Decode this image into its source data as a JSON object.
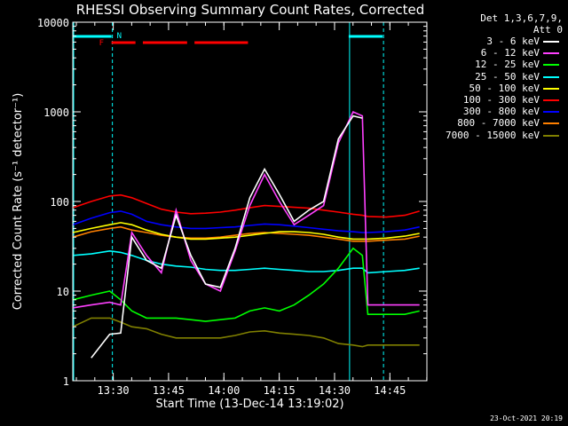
{
  "chart_data": {
    "type": "line",
    "title": "RHESSI Observing Summary Count Rates, Corrected",
    "xlabel": "Start Time (13-Dec-14 13:19:02)",
    "ylabel": "Corrected Count Rate (s⁻¹ detector⁻¹)",
    "yscale": "log",
    "ylim": [
      1,
      10000
    ],
    "xlim_minutes_after_start": [
      0,
      96
    ],
    "x_unit": "minutes after 13:19:02",
    "xticks": [
      {
        "label": "13:30",
        "value": 10.97
      },
      {
        "label": "13:45",
        "value": 25.97
      },
      {
        "label": "14:00",
        "value": 40.97
      },
      {
        "label": "14:15",
        "value": 55.97
      },
      {
        "label": "14:30",
        "value": 70.97
      },
      {
        "label": "14:45",
        "value": 85.97
      }
    ],
    "yticks": [
      {
        "label": "1",
        "value": 1
      },
      {
        "label": "10",
        "value": 10
      },
      {
        "label": "100",
        "value": 100
      },
      {
        "label": "1000",
        "value": 1000
      },
      {
        "label": "10000",
        "value": 10000
      }
    ],
    "legend_header": [
      "Det 1,3,6,7,9,",
      "Att 0"
    ],
    "legend_position": "right",
    "x": [
      0,
      5,
      10,
      13,
      16,
      20,
      24,
      28,
      32,
      36,
      40,
      44,
      48,
      52,
      56,
      60,
      64,
      68,
      72,
      76,
      78.5,
      80,
      85,
      90,
      94
    ],
    "series": [
      {
        "name": "3 - 6 keV",
        "color": "#ffffff",
        "values": [
          null,
          1.8,
          3.3,
          3.4,
          40,
          22,
          18,
          70,
          25,
          12,
          11,
          30,
          110,
          230,
          120,
          60,
          80,
          100,
          500,
          900,
          850,
          null,
          null,
          null,
          null
        ]
      },
      {
        "name": "6 - 12 keV",
        "color": "#ff40ff",
        "values": [
          6.5,
          7,
          7.5,
          7,
          45,
          25,
          16,
          80,
          22,
          12,
          10,
          28,
          90,
          200,
          100,
          55,
          70,
          90,
          450,
          1000,
          900,
          7,
          7,
          7,
          7
        ]
      },
      {
        "name": "12 - 25 keV",
        "color": "#00ff00",
        "values": [
          8,
          9,
          10,
          8,
          6,
          5,
          5,
          5,
          4.8,
          4.6,
          4.8,
          5,
          6,
          6.5,
          6,
          7,
          9,
          12,
          18,
          30,
          25,
          5.5,
          5.5,
          5.5,
          6
        ]
      },
      {
        "name": "25 - 50 keV",
        "color": "#00ffff",
        "values": [
          25,
          26,
          28,
          27,
          25,
          22,
          20,
          19,
          18.5,
          17.5,
          17,
          17,
          17.5,
          18,
          17.5,
          17,
          16.5,
          16.5,
          17,
          18,
          18,
          16,
          16.5,
          17,
          18
        ]
      },
      {
        "name": "50 - 100 keV",
        "color": "#ffff00",
        "values": [
          45,
          50,
          55,
          58,
          55,
          48,
          43,
          40,
          38,
          38,
          39,
          40,
          42,
          44,
          46,
          46,
          45,
          43,
          40,
          38,
          38,
          38,
          39,
          41,
          44
        ]
      },
      {
        "name": "100 - 300 keV",
        "color": "#ff0000",
        "values": [
          85,
          100,
          115,
          118,
          110,
          95,
          82,
          76,
          73,
          74,
          76,
          80,
          85,
          90,
          88,
          86,
          84,
          80,
          76,
          72,
          70,
          68,
          67,
          70,
          78
        ]
      },
      {
        "name": "300 - 800 keV",
        "color": "#0000ff",
        "values": [
          55,
          65,
          75,
          78,
          72,
          60,
          55,
          52,
          50,
          50,
          51,
          52,
          54,
          56,
          55,
          53,
          51,
          49,
          47,
          46,
          45,
          45,
          46,
          48,
          52
        ]
      },
      {
        "name": "800 - 7000 keV",
        "color": "#ff8000",
        "values": [
          40,
          46,
          50,
          52,
          48,
          45,
          42,
          40,
          39,
          39,
          40,
          42,
          44,
          45,
          44,
          43,
          42,
          40,
          38,
          36,
          36,
          36,
          37,
          38,
          41
        ]
      },
      {
        "name": "7000 - 15000 keV",
        "color": "#808000",
        "values": [
          4,
          5,
          5,
          4.5,
          4,
          3.8,
          3.3,
          3,
          3,
          3,
          3,
          3.2,
          3.5,
          3.6,
          3.4,
          3.3,
          3.2,
          3,
          2.6,
          2.5,
          2.4,
          2.5,
          2.5,
          2.5,
          2.5
        ]
      }
    ],
    "annotations": [
      {
        "text": "N",
        "color": "#00ffff"
      },
      {
        "text": "F",
        "color": "#ff0000"
      }
    ],
    "flare_bar_segments": [
      [
        10.5,
        17
      ],
      [
        19,
        31
      ],
      [
        33,
        47.5
      ]
    ],
    "night_bar_segments": [
      [
        0,
        10.5
      ],
      [
        74.8,
        84
      ]
    ],
    "vertical_lines": [
      {
        "x": 0,
        "color": "#00ffff",
        "style": "solid"
      },
      {
        "x": 10.5,
        "color": "#00ffff",
        "style": "dashed"
      },
      {
        "x": 74.8,
        "color": "#00ffff",
        "style": "solid"
      },
      {
        "x": 84,
        "color": "#00ffff",
        "style": "dashed"
      }
    ],
    "grid": false
  },
  "footer_date": "23-Oct-2021 20:19"
}
